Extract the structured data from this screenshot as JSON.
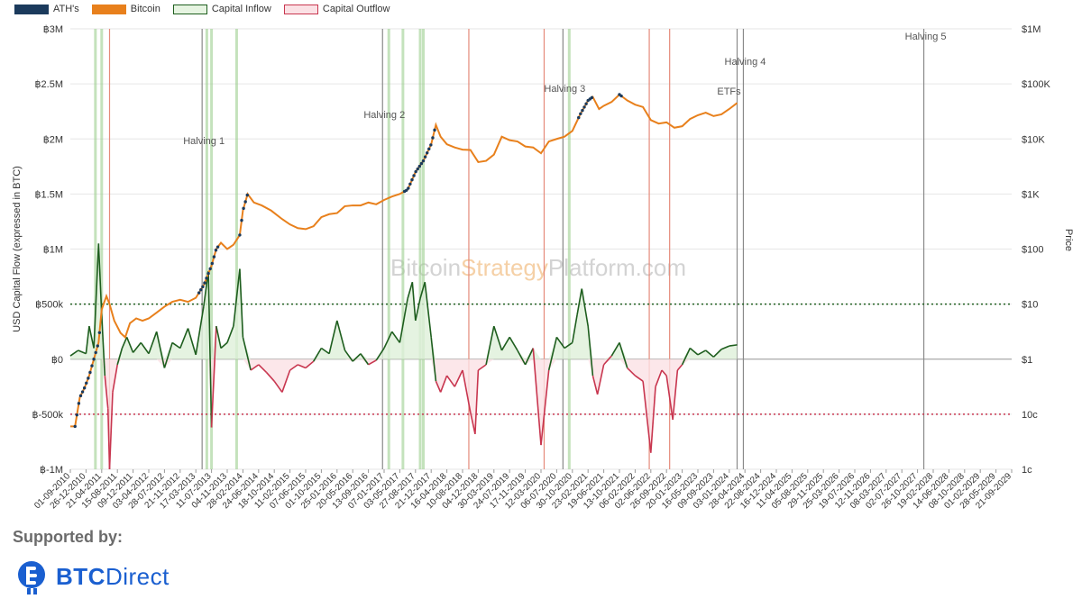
{
  "legend": [
    {
      "label": "ATH's",
      "color": "#1b3a5c",
      "style": "solid"
    },
    {
      "label": "Bitcoin",
      "color": "#e8801c",
      "style": "solid"
    },
    {
      "label": "Capital Inflow",
      "color": "#1e5e1e",
      "fill": "#e6f4e1",
      "style": "outline"
    },
    {
      "label": "Capital Outflow",
      "color": "#c8364f",
      "fill": "#fbe1e5",
      "style": "outline"
    }
  ],
  "watermark": {
    "part1": "Bitcoin",
    "part2": "Strategy",
    "part3": "Platform.com"
  },
  "footer": {
    "supported_label": "Supported by:",
    "logo_brand": "BTC",
    "logo_brand2": "Direct"
  },
  "chart_data": {
    "type": "line",
    "left_axis": {
      "label": "USD Capital Flow (expressed in BTC)",
      "ticks": [
        "฿3M",
        "฿2.5M",
        "฿2M",
        "฿1.5M",
        "฿1M",
        "฿500k",
        "฿0",
        "฿-500k",
        "฿-1M"
      ],
      "min": -1000000,
      "max": 3000000
    },
    "right_axis": {
      "label": "Price",
      "ticks": [
        "$1M",
        "$100K",
        "$10K",
        "$1K",
        "$100",
        "$10",
        "$1",
        "10c",
        "1c"
      ],
      "log": true
    },
    "x_ticks": [
      "01-09-2010",
      "26-12-2010",
      "21-04-2011",
      "15-08-2011",
      "09-12-2011",
      "03-04-2012",
      "28-07-2012",
      "21-11-2012",
      "17-03-2013",
      "11-07-2013",
      "04-11-2013",
      "28-02-2014",
      "24-06-2014",
      "18-10-2014",
      "11-02-2015",
      "07-06-2015",
      "01-10-2015",
      "25-01-2016",
      "20-05-2016",
      "13-09-2016",
      "07-01-2017",
      "03-05-2017",
      "27-08-2017",
      "21-12-2017",
      "16-04-2018",
      "10-08-2018",
      "04-12-2018",
      "30-03-2019",
      "24-07-2019",
      "17-11-2019",
      "12-03-2020",
      "06-07-2020",
      "30-10-2020",
      "23-02-2021",
      "19-06-2021",
      "13-10-2021",
      "06-02-2022",
      "02-06-2022",
      "26-09-2022",
      "20-01-2023",
      "16-05-2023",
      "09-09-2023",
      "03-01-2024",
      "28-04-2024",
      "22-08-2024",
      "16-12-2024",
      "11-04-2025",
      "05-08-2025",
      "29-11-2025",
      "25-03-2026",
      "19-07-2026",
      "12-11-2026",
      "08-03-2027",
      "02-07-2027",
      "26-10-2027",
      "19-02-2028",
      "14-06-2028",
      "08-10-2028",
      "01-02-2029",
      "28-05-2029",
      "21-09-2029"
    ],
    "annotations": [
      {
        "label": "Halving 1",
        "x": 8.4
      },
      {
        "label": "Halving 2",
        "x": 19.9
      },
      {
        "label": "Halving 3",
        "x": 31.4
      },
      {
        "label": "Halving 4",
        "x": 42.9
      },
      {
        "label": "ETFs",
        "x": 42.5
      },
      {
        "label": "Halving 5",
        "x": 54.4
      }
    ],
    "reference_lines": [
      {
        "name": "inflow-threshold",
        "value": 500000,
        "color": "#1e5e1e"
      },
      {
        "name": "outflow-threshold",
        "value": -500000,
        "color": "#c8364f"
      }
    ],
    "bitcoin_price": [
      [
        0,
        0.06
      ],
      [
        0.3,
        0.06
      ],
      [
        0.6,
        0.2
      ],
      [
        0.9,
        0.3
      ],
      [
        1.2,
        0.5
      ],
      [
        1.5,
        1.0
      ],
      [
        1.8,
        2.0
      ],
      [
        2.0,
        8
      ],
      [
        2.3,
        14
      ],
      [
        2.5,
        10
      ],
      [
        2.8,
        5
      ],
      [
        3.2,
        3
      ],
      [
        3.5,
        2.5
      ],
      [
        3.8,
        4.5
      ],
      [
        4.2,
        5.5
      ],
      [
        4.6,
        5
      ],
      [
        5.0,
        5.5
      ],
      [
        5.5,
        7
      ],
      [
        6.0,
        9
      ],
      [
        6.5,
        11
      ],
      [
        7.0,
        12
      ],
      [
        7.5,
        11
      ],
      [
        8.0,
        13
      ],
      [
        8.5,
        22
      ],
      [
        9.0,
        50
      ],
      [
        9.3,
        100
      ],
      [
        9.6,
        130
      ],
      [
        10.0,
        100
      ],
      [
        10.4,
        120
      ],
      [
        10.8,
        180
      ],
      [
        11.0,
        500
      ],
      [
        11.3,
        1000
      ],
      [
        11.7,
        700
      ],
      [
        12.2,
        620
      ],
      [
        12.8,
        500
      ],
      [
        13.5,
        350
      ],
      [
        14.0,
        280
      ],
      [
        14.5,
        240
      ],
      [
        15.0,
        230
      ],
      [
        15.5,
        260
      ],
      [
        16.0,
        380
      ],
      [
        16.5,
        430
      ],
      [
        17.0,
        450
      ],
      [
        17.5,
        600
      ],
      [
        18.0,
        620
      ],
      [
        18.5,
        620
      ],
      [
        19.0,
        700
      ],
      [
        19.5,
        650
      ],
      [
        20.0,
        780
      ],
      [
        20.5,
        900
      ],
      [
        21.0,
        1000
      ],
      [
        21.5,
        1200
      ],
      [
        22.0,
        2500
      ],
      [
        22.5,
        4000
      ],
      [
        23.0,
        8000
      ],
      [
        23.3,
        18000
      ],
      [
        23.6,
        11000
      ],
      [
        24.0,
        8000
      ],
      [
        24.5,
        7000
      ],
      [
        25.0,
        6400
      ],
      [
        25.5,
        6300
      ],
      [
        26.0,
        3800
      ],
      [
        26.5,
        4000
      ],
      [
        27.0,
        5200
      ],
      [
        27.5,
        11000
      ],
      [
        28.0,
        9500
      ],
      [
        28.5,
        9000
      ],
      [
        29.0,
        7300
      ],
      [
        29.5,
        7000
      ],
      [
        30.0,
        5500
      ],
      [
        30.5,
        9000
      ],
      [
        31.0,
        10000
      ],
      [
        31.5,
        11000
      ],
      [
        32.0,
        14000
      ],
      [
        32.5,
        28000
      ],
      [
        33.0,
        50000
      ],
      [
        33.3,
        58000
      ],
      [
        33.7,
        35000
      ],
      [
        34.0,
        40000
      ],
      [
        34.5,
        47000
      ],
      [
        35.0,
        64000
      ],
      [
        35.5,
        50000
      ],
      [
        36.0,
        42000
      ],
      [
        36.5,
        38000
      ],
      [
        37.0,
        22000
      ],
      [
        37.5,
        19000
      ],
      [
        38.0,
        20000
      ],
      [
        38.5,
        16000
      ],
      [
        39.0,
        17000
      ],
      [
        39.5,
        23000
      ],
      [
        40.0,
        27000
      ],
      [
        40.5,
        30000
      ],
      [
        41.0,
        26000
      ],
      [
        41.5,
        28000
      ],
      [
        42.0,
        35000
      ],
      [
        42.5,
        45000
      ]
    ],
    "ath_segments": [
      [
        0.3,
        1.9
      ],
      [
        8.2,
        9.4
      ],
      [
        10.8,
        11.3
      ],
      [
        21.3,
        23.3
      ],
      [
        32.4,
        33.3
      ],
      [
        35.0,
        35.2
      ]
    ],
    "capital_flow": [
      [
        0,
        30000
      ],
      [
        0.5,
        80000
      ],
      [
        1.0,
        50000
      ],
      [
        1.2,
        300000
      ],
      [
        1.5,
        100000
      ],
      [
        1.8,
        1050000
      ],
      [
        2.0,
        400000
      ],
      [
        2.2,
        -150000
      ],
      [
        2.4,
        -450000
      ],
      [
        2.5,
        -1000000
      ],
      [
        2.7,
        -300000
      ],
      [
        3.0,
        -50000
      ],
      [
        3.3,
        100000
      ],
      [
        3.6,
        200000
      ],
      [
        4.0,
        60000
      ],
      [
        4.5,
        150000
      ],
      [
        5.0,
        50000
      ],
      [
        5.5,
        250000
      ],
      [
        6.0,
        -80000
      ],
      [
        6.5,
        150000
      ],
      [
        7.0,
        100000
      ],
      [
        7.5,
        280000
      ],
      [
        8.0,
        40000
      ],
      [
        8.5,
        480000
      ],
      [
        8.8,
        800000
      ],
      [
        9.0,
        -620000
      ],
      [
        9.3,
        300000
      ],
      [
        9.6,
        100000
      ],
      [
        10.0,
        150000
      ],
      [
        10.4,
        300000
      ],
      [
        10.8,
        820000
      ],
      [
        11.0,
        200000
      ],
      [
        11.5,
        -100000
      ],
      [
        12.0,
        -50000
      ],
      [
        12.5,
        -120000
      ],
      [
        13.0,
        -200000
      ],
      [
        13.5,
        -300000
      ],
      [
        14.0,
        -100000
      ],
      [
        14.5,
        -50000
      ],
      [
        15.0,
        -80000
      ],
      [
        15.5,
        -20000
      ],
      [
        16.0,
        100000
      ],
      [
        16.5,
        50000
      ],
      [
        17.0,
        350000
      ],
      [
        17.5,
        80000
      ],
      [
        18.0,
        -20000
      ],
      [
        18.5,
        50000
      ],
      [
        19.0,
        -50000
      ],
      [
        19.5,
        -10000
      ],
      [
        20.0,
        100000
      ],
      [
        20.5,
        250000
      ],
      [
        21.0,
        150000
      ],
      [
        21.5,
        550000
      ],
      [
        21.8,
        700000
      ],
      [
        22.0,
        350000
      ],
      [
        22.3,
        550000
      ],
      [
        22.6,
        700000
      ],
      [
        23.0,
        200000
      ],
      [
        23.3,
        -200000
      ],
      [
        23.6,
        -300000
      ],
      [
        24.0,
        -150000
      ],
      [
        24.5,
        -250000
      ],
      [
        25.0,
        -100000
      ],
      [
        25.5,
        -480000
      ],
      [
        25.8,
        -680000
      ],
      [
        26.0,
        -100000
      ],
      [
        26.5,
        -50000
      ],
      [
        27.0,
        300000
      ],
      [
        27.5,
        80000
      ],
      [
        28.0,
        200000
      ],
      [
        28.5,
        80000
      ],
      [
        29.0,
        -50000
      ],
      [
        29.5,
        100000
      ],
      [
        30.0,
        -780000
      ],
      [
        30.5,
        -100000
      ],
      [
        31.0,
        200000
      ],
      [
        31.5,
        100000
      ],
      [
        32.0,
        150000
      ],
      [
        32.3,
        400000
      ],
      [
        32.6,
        640000
      ],
      [
        33.0,
        300000
      ],
      [
        33.3,
        -150000
      ],
      [
        33.6,
        -320000
      ],
      [
        34.0,
        -50000
      ],
      [
        34.5,
        30000
      ],
      [
        35.0,
        150000
      ],
      [
        35.5,
        -80000
      ],
      [
        36.0,
        -150000
      ],
      [
        36.5,
        -200000
      ],
      [
        37.0,
        -850000
      ],
      [
        37.3,
        -250000
      ],
      [
        37.7,
        -100000
      ],
      [
        38.0,
        -150000
      ],
      [
        38.4,
        -550000
      ],
      [
        38.7,
        -100000
      ],
      [
        39.0,
        -50000
      ],
      [
        39.5,
        100000
      ],
      [
        40.0,
        40000
      ],
      [
        40.5,
        80000
      ],
      [
        41.0,
        20000
      ],
      [
        41.5,
        90000
      ],
      [
        42.0,
        120000
      ],
      [
        42.5,
        130000
      ]
    ],
    "vlines_inflow": [
      1.6,
      2.0,
      8.7,
      9.0,
      10.6,
      20.3,
      21.2,
      22.3,
      22.5,
      31.8
    ],
    "vlines_outflow": [
      2.5,
      25.4,
      30.2,
      36.9,
      38.2
    ],
    "vlines_event": [
      8.4,
      19.9,
      31.4,
      42.5,
      42.9,
      54.4
    ],
    "x_range": [
      0,
      60
    ]
  }
}
